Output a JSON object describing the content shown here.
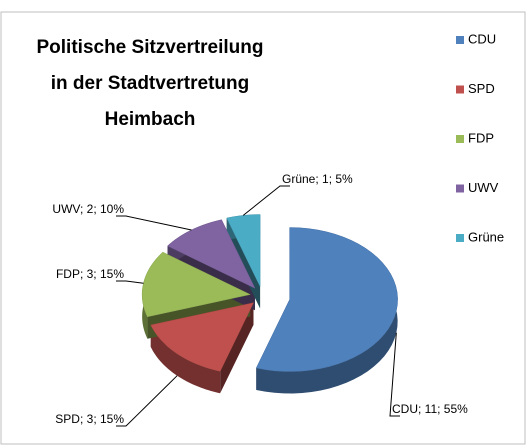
{
  "chart_data": {
    "type": "pie",
    "title": [
      "Politische Sitzvertreilung",
      "in der Stadtvertretung",
      "Heimbach"
    ],
    "categories": [
      "CDU",
      "SPD",
      "FDP",
      "UWV",
      "Grüne"
    ],
    "values": [
      11,
      3,
      3,
      2,
      1
    ],
    "value_labels": [
      "CDU; 11; 55%",
      "SPD; 3; 15%",
      "FDP; 3; 15%",
      "UWV; 2; 10%",
      "Grüne; 1; 5%"
    ],
    "colors": [
      "#4f81bd",
      "#c0504d",
      "#9bbb59",
      "#8064a2",
      "#4bacc6"
    ],
    "legend": "right"
  }
}
